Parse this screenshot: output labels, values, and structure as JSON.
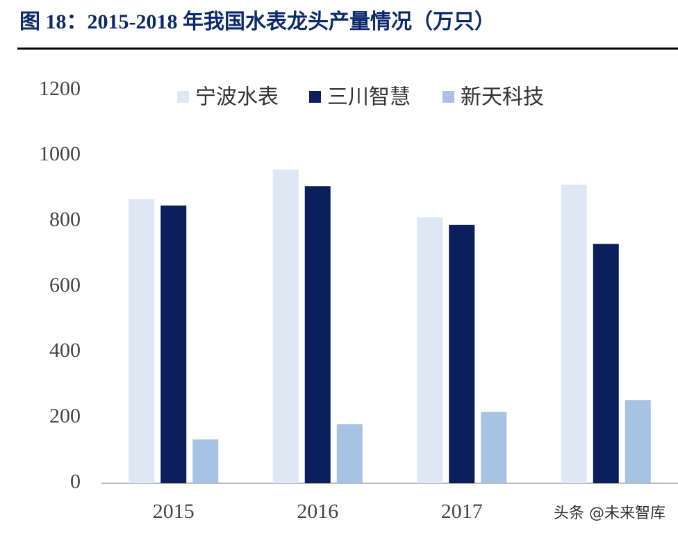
{
  "chart_data": {
    "type": "bar",
    "title": "图 18：2015-2018 年我国水表龙头产量情况（万只）",
    "categories": [
      "2015",
      "2016",
      "2017",
      null
    ],
    "series": [
      {
        "name": "宁波水表",
        "color": "#dde8f4",
        "values": [
          867,
          958,
          812,
          912
        ]
      },
      {
        "name": "三川智慧",
        "color": "#0b1f5c",
        "values": [
          848,
          907,
          789,
          731
        ]
      },
      {
        "name": "新天科技",
        "color": "#a7c3e3",
        "values": [
          134,
          180,
          218,
          254
        ]
      }
    ],
    "ylim": [
      0,
      1200
    ],
    "yticks": [
      0,
      200,
      400,
      600,
      800,
      1000,
      1200
    ],
    "grid": false,
    "legend": "top",
    "watermark": "头条 @未来智库"
  }
}
